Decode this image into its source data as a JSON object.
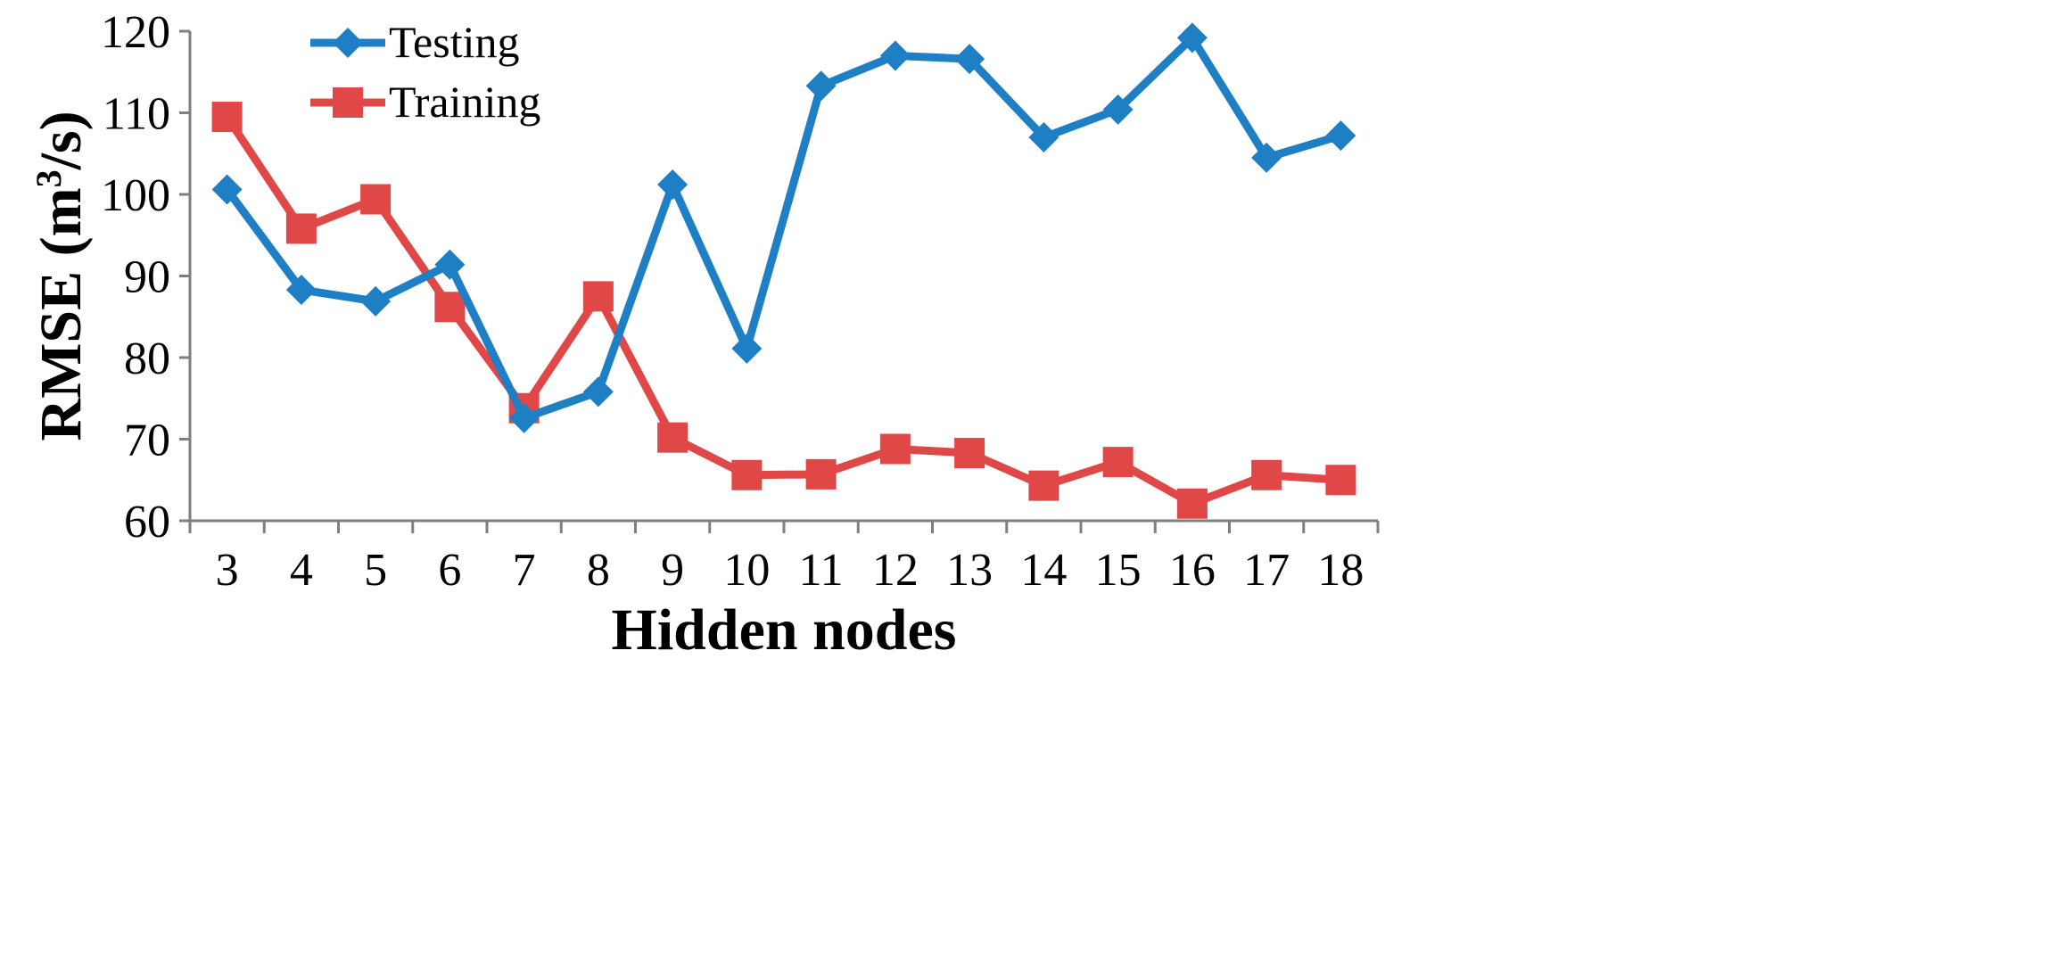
{
  "chart_data": {
    "type": "line",
    "x": [
      3,
      4,
      5,
      6,
      7,
      8,
      9,
      10,
      11,
      12,
      13,
      14,
      15,
      16,
      17,
      18
    ],
    "categories": [
      "3",
      "4",
      "5",
      "6",
      "7",
      "8",
      "9",
      "10",
      "11",
      "12",
      "13",
      "14",
      "15",
      "16",
      "17",
      "18"
    ],
    "series": [
      {
        "name": "Testing",
        "color": "#1f7fc4",
        "marker": "diamond",
        "values": [
          100.6,
          88.3,
          86.9,
          91.4,
          72.6,
          75.8,
          101.2,
          81.1,
          113.3,
          117.0,
          116.6,
          107.0,
          110.4,
          119.2,
          104.5,
          107.2
        ]
      },
      {
        "name": "Training",
        "color": "#e04848",
        "marker": "square",
        "values": [
          109.5,
          95.8,
          99.4,
          86.2,
          73.8,
          87.5,
          70.2,
          65.6,
          65.7,
          68.8,
          68.3,
          64.3,
          67.2,
          62.1,
          65.6,
          65.0
        ]
      }
    ],
    "xlabel": "Hidden nodes",
    "ylabel_main": "RMSE (m",
    "ylabel_sup": "3",
    "ylabel_end": "/s)",
    "ylim": [
      60,
      120
    ],
    "yticks": [
      "60",
      "70",
      "80",
      "90",
      "100",
      "110",
      "120"
    ],
    "grid": false,
    "legend_position": "top-left"
  }
}
